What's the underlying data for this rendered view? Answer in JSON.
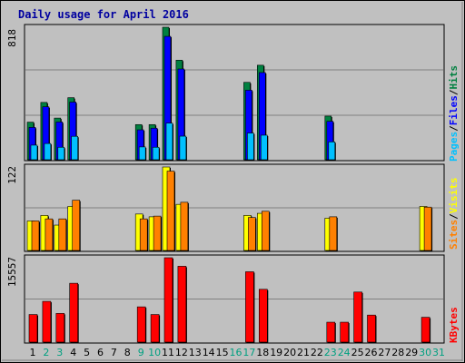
{
  "chart_data": [
    {
      "type": "bar",
      "panel": "hits-files-pages",
      "title": "Daily usage for April 2016",
      "categories": [
        "1",
        "2",
        "3",
        "4",
        "5",
        "6",
        "7",
        "8",
        "9",
        "10",
        "11",
        "12",
        "13",
        "14",
        "15",
        "16",
        "17",
        "18",
        "19",
        "20",
        "21",
        "22",
        "23",
        "24",
        "25",
        "26",
        "27",
        "28",
        "29",
        "30",
        "31"
      ],
      "ymax_label": "818",
      "ylim": [
        0,
        818
      ],
      "series": [
        {
          "name": "Hits",
          "color": "#008040",
          "values": [
            236,
            357,
            261,
            386,
            0,
            0,
            0,
            0,
            221,
            221,
            818,
            616,
            0,
            0,
            0,
            0,
            480,
            585,
            0,
            0,
            0,
            0,
            273,
            0,
            0,
            0,
            0,
            0,
            0,
            0,
            0
          ]
        },
        {
          "name": "Files",
          "color": "#0000ff",
          "values": [
            204,
            330,
            237,
            359,
            0,
            0,
            0,
            0,
            189,
            199,
            762,
            562,
            0,
            0,
            0,
            0,
            432,
            540,
            0,
            0,
            0,
            0,
            241,
            0,
            0,
            0,
            0,
            0,
            0,
            0,
            0
          ]
        },
        {
          "name": "Pages",
          "color": "#00c0ff",
          "values": [
            95,
            105,
            82,
            149,
            0,
            0,
            0,
            0,
            84,
            82,
            230,
            150,
            0,
            0,
            0,
            0,
            169,
            156,
            0,
            0,
            0,
            0,
            115,
            0,
            0,
            0,
            0,
            0,
            0,
            0,
            0
          ]
        }
      ]
    },
    {
      "type": "bar",
      "panel": "visits-sites",
      "categories": [
        "1",
        "2",
        "3",
        "4",
        "5",
        "6",
        "7",
        "8",
        "9",
        "10",
        "11",
        "12",
        "13",
        "14",
        "15",
        "16",
        "17",
        "18",
        "19",
        "20",
        "21",
        "22",
        "23",
        "24",
        "25",
        "26",
        "27",
        "28",
        "29",
        "30",
        "31"
      ],
      "ymax_label": "122",
      "ylim": [
        0,
        122
      ],
      "series": [
        {
          "name": "Visits",
          "color": "#ffff00",
          "values": [
            44,
            52,
            38,
            65,
            0,
            0,
            0,
            0,
            54,
            50,
            122,
            68,
            0,
            0,
            0,
            0,
            52,
            55,
            0,
            0,
            0,
            0,
            48,
            0,
            0,
            0,
            0,
            0,
            0,
            65,
            0
          ]
        },
        {
          "name": "Sites",
          "color": "#ff8000",
          "values": [
            44,
            47,
            47,
            74,
            0,
            0,
            0,
            0,
            47,
            51,
            116,
            71,
            0,
            0,
            0,
            0,
            49,
            58,
            0,
            0,
            0,
            0,
            50,
            0,
            0,
            0,
            0,
            0,
            0,
            64,
            0
          ]
        }
      ]
    },
    {
      "type": "bar",
      "panel": "kbytes",
      "categories": [
        "1",
        "2",
        "3",
        "4",
        "5",
        "6",
        "7",
        "8",
        "9",
        "10",
        "11",
        "12",
        "13",
        "14",
        "15",
        "16",
        "17",
        "18",
        "19",
        "20",
        "21",
        "22",
        "23",
        "24",
        "25",
        "26",
        "27",
        "28",
        "29",
        "30",
        "31"
      ],
      "ymax_label": "15557",
      "ylim": [
        0,
        15557
      ],
      "series": [
        {
          "name": "KBytes",
          "color": "#ff0000",
          "values": [
            5200,
            7600,
            5400,
            10900,
            0,
            0,
            0,
            0,
            6600,
            5200,
            15557,
            14000,
            0,
            0,
            0,
            0,
            13000,
            9800,
            0,
            0,
            0,
            0,
            3800,
            3800,
            9300,
            5100,
            0,
            0,
            0,
            4700,
            0
          ]
        }
      ]
    }
  ],
  "x_label_colors": {
    "weekday": "#000000",
    "weekend": "#00a080"
  },
  "weekend_days": [
    2,
    3,
    9,
    10,
    16,
    17,
    23,
    24,
    30,
    31
  ],
  "legend": {
    "hits": "Hits",
    "files": "Files",
    "pages": "Pages",
    "visits": "Visits",
    "sites": "Sites",
    "kbytes": "KBytes",
    "separator": "/"
  }
}
